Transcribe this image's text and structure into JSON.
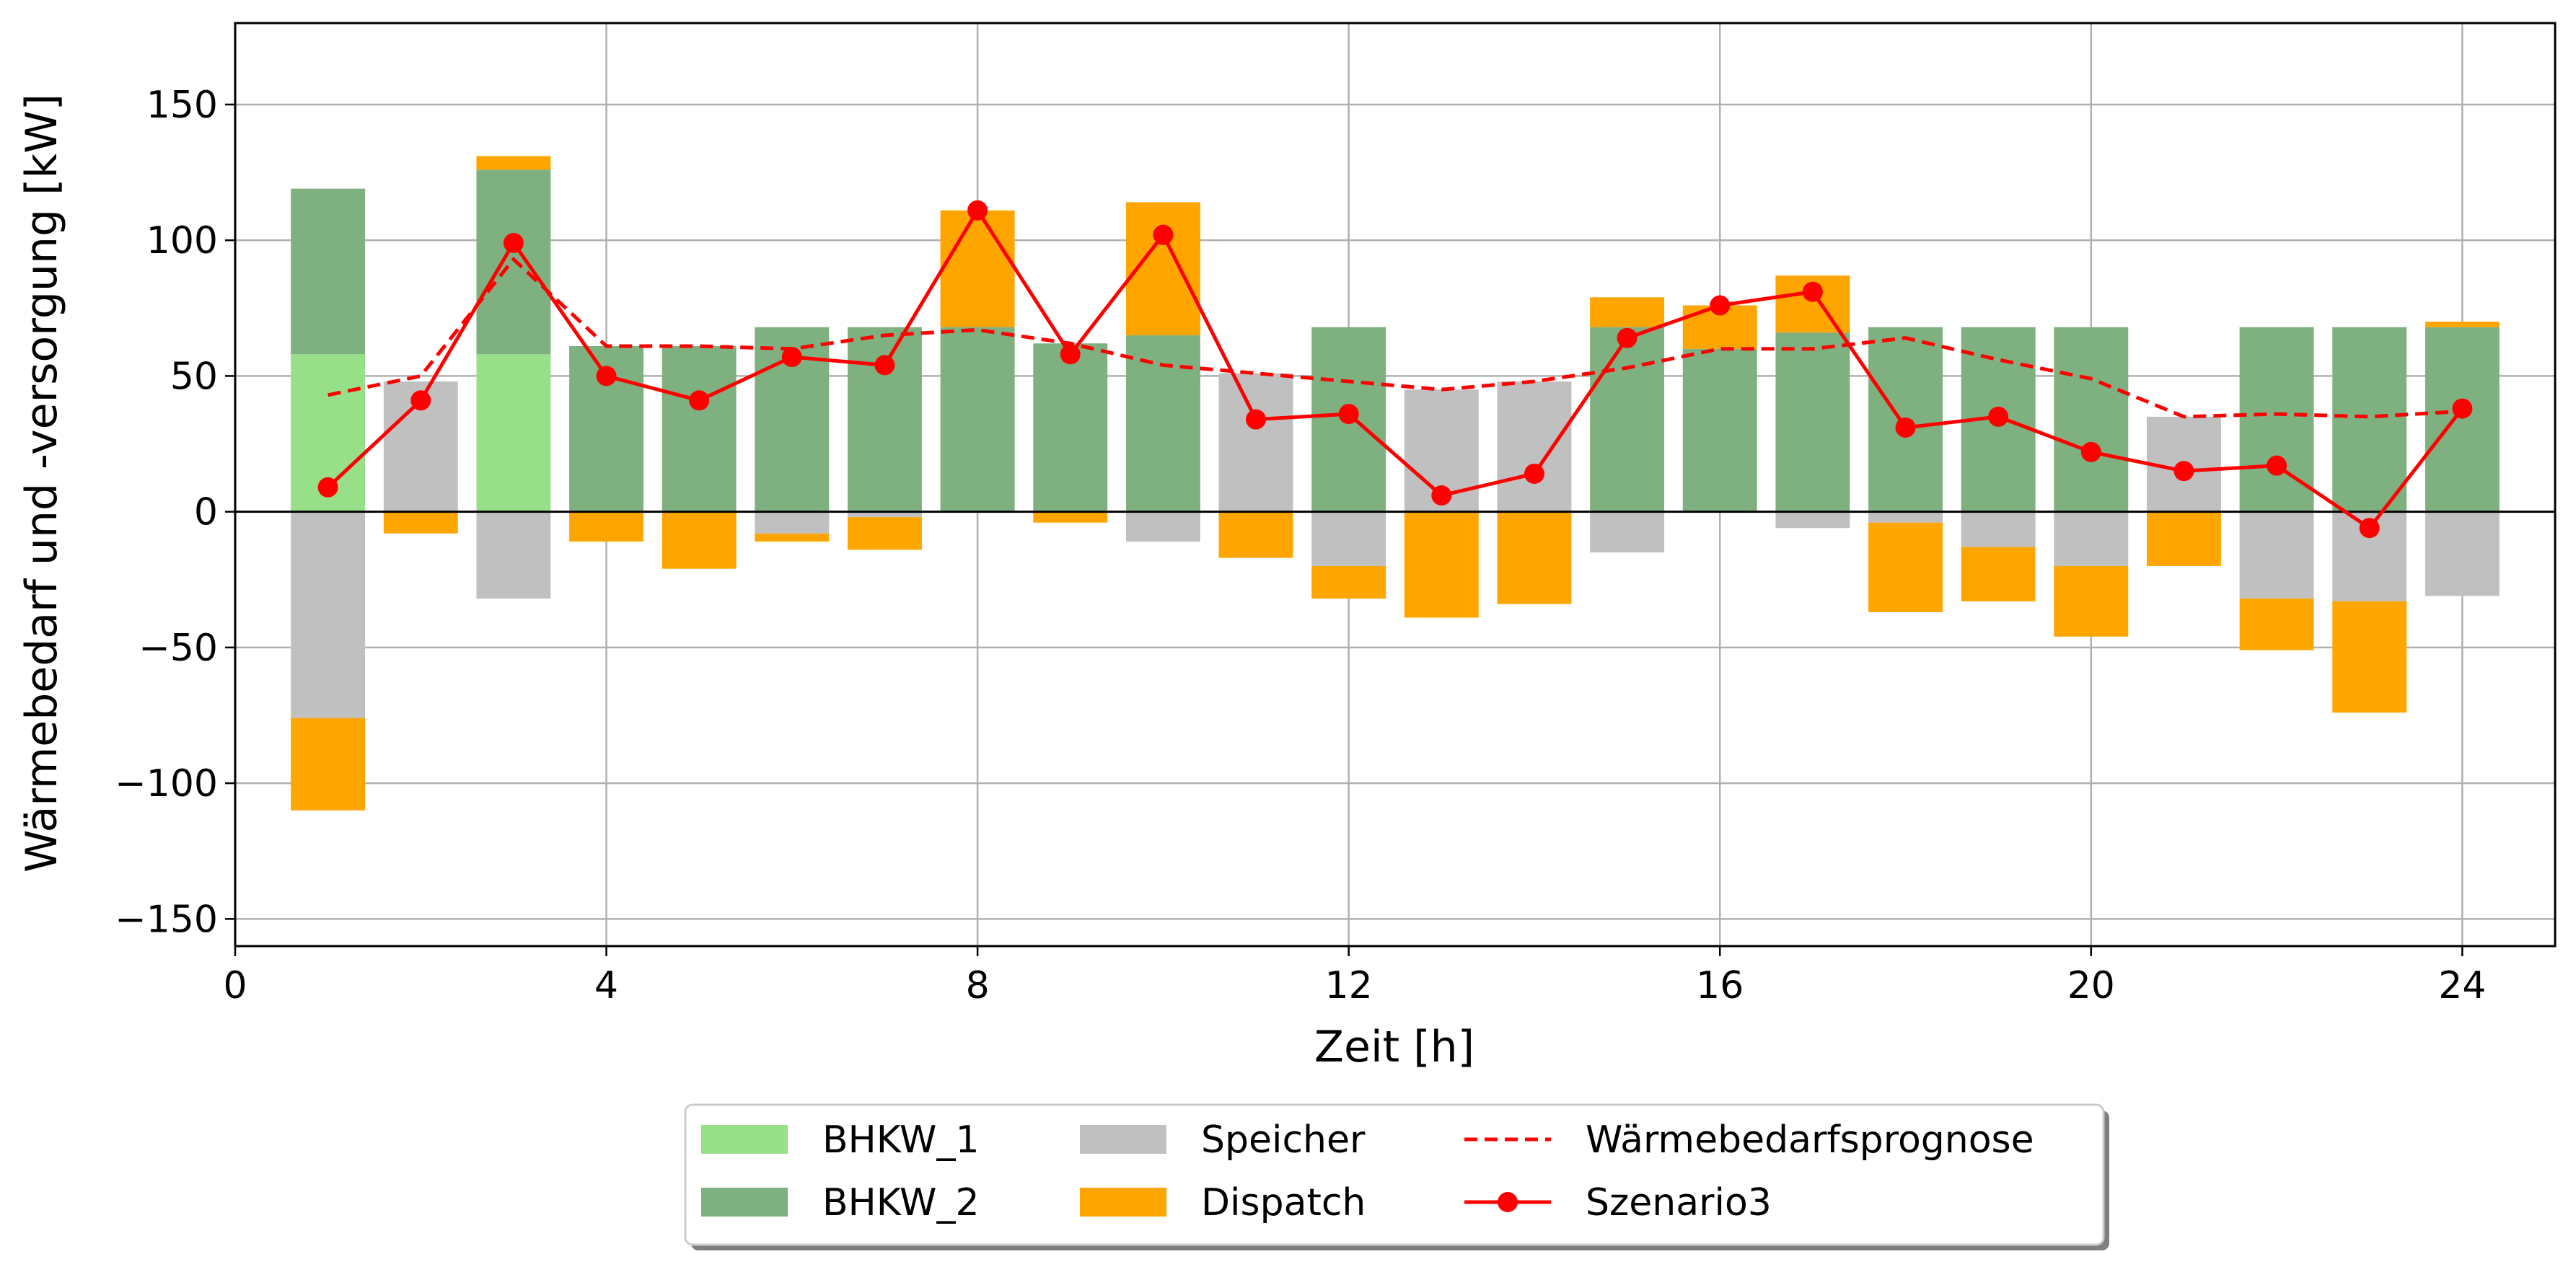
{
  "chart_data": {
    "type": "bar",
    "xlabel": "Zeit [h]",
    "ylabel": "Wärmebedarf und -versorgung [kW]",
    "xlim": [
      0,
      25
    ],
    "ylim": [
      -160,
      180
    ],
    "xticks": [
      0,
      4,
      8,
      12,
      16,
      20,
      24
    ],
    "yticks": [
      -150,
      -100,
      -50,
      0,
      50,
      100,
      150
    ],
    "ytick_labels": [
      "−150",
      "−100",
      "−50",
      "0",
      "50",
      "100",
      "150"
    ],
    "grid": true,
    "legend_placement": "bottom-center",
    "hours": [
      1,
      2,
      3,
      4,
      5,
      6,
      7,
      8,
      9,
      10,
      11,
      12,
      13,
      14,
      15,
      16,
      17,
      18,
      19,
      20,
      21,
      22,
      23,
      24
    ],
    "bar_series": [
      {
        "key": "bhkw1",
        "name": "BHKW_1",
        "color": "#98df8a",
        "segments": [
          [
            0,
            58
          ],
          null,
          [
            0,
            58
          ],
          null,
          null,
          null,
          null,
          null,
          null,
          null,
          null,
          null,
          null,
          null,
          null,
          null,
          null,
          null,
          null,
          null,
          null,
          null,
          null,
          null
        ]
      },
      {
        "key": "bhkw2",
        "name": "BHKW_2",
        "color": "#7fb07f",
        "segments": [
          [
            58,
            119
          ],
          null,
          [
            58,
            126
          ],
          [
            0,
            61
          ],
          [
            0,
            61
          ],
          [
            0,
            68
          ],
          [
            0,
            68
          ],
          [
            0,
            68
          ],
          [
            0,
            62
          ],
          [
            0,
            65
          ],
          null,
          [
            0,
            68
          ],
          null,
          null,
          [
            0,
            68
          ],
          [
            0,
            60
          ],
          [
            0,
            66
          ],
          [
            0,
            68
          ],
          [
            0,
            68
          ],
          [
            0,
            68
          ],
          null,
          [
            0,
            68
          ],
          [
            0,
            68
          ],
          [
            0,
            68
          ]
        ]
      },
      {
        "key": "speicher",
        "name": "Speicher",
        "color": "#c0c0c0",
        "segments": [
          [
            -76,
            0
          ],
          [
            0,
            48
          ],
          [
            -32,
            0
          ],
          null,
          null,
          [
            -8,
            0
          ],
          [
            -2,
            0
          ],
          null,
          null,
          [
            -11,
            0
          ],
          [
            0,
            51
          ],
          [
            -20,
            0
          ],
          [
            0,
            45
          ],
          [
            0,
            48
          ],
          [
            -15,
            0
          ],
          null,
          [
            -6,
            0
          ],
          [
            -4,
            0
          ],
          [
            -13,
            0
          ],
          [
            -20,
            0
          ],
          [
            0,
            35
          ],
          [
            -32,
            0
          ],
          [
            -33,
            0
          ],
          [
            -31,
            0
          ]
        ]
      },
      {
        "key": "speicher_b",
        "name": "",
        "color": "#c0c0c0",
        "segments": [
          null,
          null,
          null,
          null,
          null,
          null,
          null,
          null,
          null,
          null,
          null,
          [
            0,
            0
          ],
          null,
          null,
          null,
          null,
          null,
          null,
          null,
          [
            0,
            0
          ],
          null,
          [
            0,
            0
          ],
          null,
          null
        ]
      },
      {
        "key": "dispatch",
        "name": "Dispatch",
        "color": "#ffa500",
        "segments": [
          [
            -110,
            -76
          ],
          [
            -8,
            0
          ],
          [
            126,
            131
          ],
          [
            -11,
            0
          ],
          [
            -21,
            0
          ],
          [
            -11,
            -8
          ],
          [
            -14,
            -2
          ],
          [
            68,
            111
          ],
          [
            -4,
            0
          ],
          [
            65,
            114
          ],
          [
            -17,
            0
          ],
          [
            -32,
            -20
          ],
          [
            -39,
            0
          ],
          [
            -34,
            0
          ],
          [
            68,
            79
          ],
          [
            60,
            76
          ],
          [
            66,
            87
          ],
          [
            -37,
            -4
          ],
          [
            -33,
            -13
          ],
          [
            -46,
            -20
          ],
          [
            -20,
            0
          ],
          [
            -51,
            -32
          ],
          [
            -74,
            -33
          ],
          [
            68,
            70
          ]
        ]
      }
    ],
    "line_series": [
      {
        "name": "Wärmebedarfsprognose",
        "color": "#ff0000",
        "style": "dashed",
        "y": [
          43,
          50,
          93,
          61,
          61,
          60,
          65,
          67,
          62,
          54,
          51,
          48,
          45,
          48,
          53,
          60,
          60,
          64,
          56,
          49,
          35,
          36,
          35,
          37
        ]
      },
      {
        "name": "Szenario3",
        "color": "#ff0000",
        "style": "solid-markers",
        "y": [
          9,
          41,
          99,
          50,
          41,
          57,
          54,
          111,
          58,
          102,
          34,
          36,
          6,
          14,
          64,
          76,
          81,
          31,
          35,
          22,
          15,
          17,
          -6,
          38
        ]
      }
    ],
    "legend": [
      {
        "label": "BHKW_1",
        "kind": "patch",
        "color": "#98df8a"
      },
      {
        "label": "BHKW_2",
        "kind": "patch",
        "color": "#7fb07f"
      },
      {
        "label": "Speicher",
        "kind": "patch",
        "color": "#c0c0c0"
      },
      {
        "label": "Dispatch",
        "kind": "patch",
        "color": "#ffa500"
      },
      {
        "label": "Wärmebedarfsprognose",
        "kind": "dashed",
        "color": "#ff0000"
      },
      {
        "label": "Szenario3",
        "kind": "line-marker",
        "color": "#ff0000"
      }
    ]
  }
}
